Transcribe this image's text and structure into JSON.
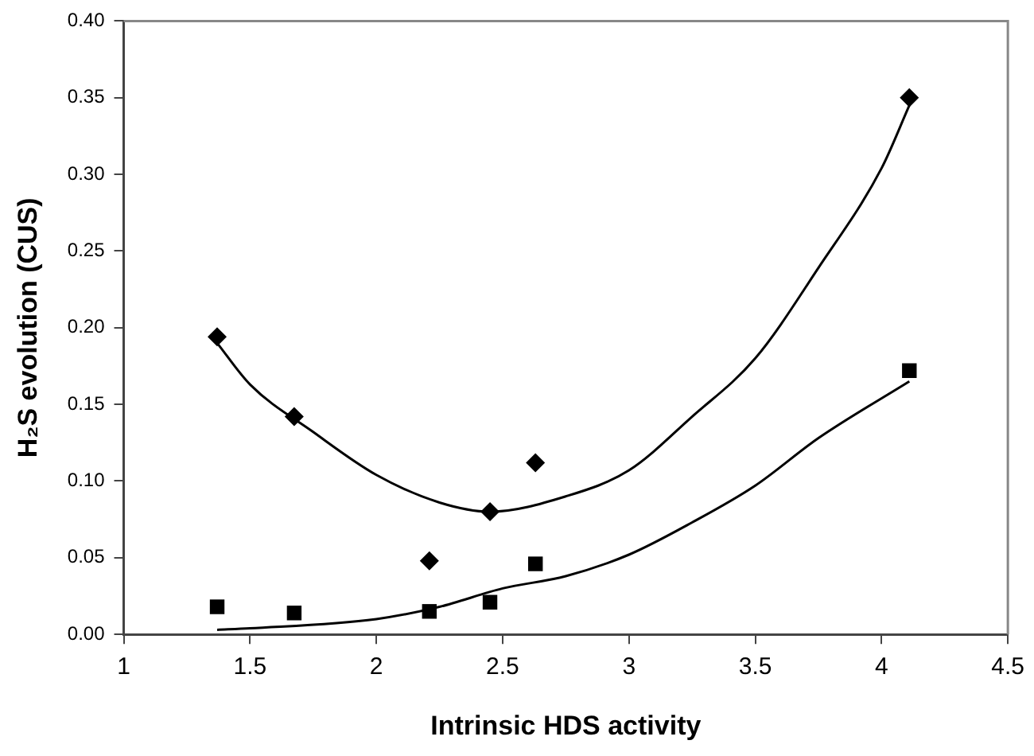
{
  "chart_data": {
    "type": "scatter",
    "xlabel": "Intrinsic HDS activity",
    "ylabel": "H₂S evolution (CUS)",
    "xlim": [
      1,
      4.5
    ],
    "xticks": [
      1,
      1.5,
      2,
      2.5,
      3,
      3.5,
      4,
      4.5
    ],
    "ylim": [
      0,
      0.4
    ],
    "yticks": [
      {
        "value": 0,
        "label": "0.00"
      },
      {
        "value": 0.05,
        "label": "0.05"
      },
      {
        "value": 0.1,
        "label": "0.10"
      },
      {
        "value": 0.15,
        "label": "0.15"
      },
      {
        "value": 0.2,
        "label": "0.20"
      },
      {
        "value": 0.25,
        "label": "0.25"
      },
      {
        "value": 0.3,
        "label": "0.30"
      },
      {
        "value": 0.35,
        "label": "0.35"
      },
      {
        "value": 0.4,
        "label": "0.40"
      }
    ],
    "grid": false,
    "legend": false,
    "series": [
      {
        "marker": "diamond",
        "color": "#000000",
        "x": [
          1.37,
          1.675,
          2.21,
          2.45,
          2.63,
          4.11
        ],
        "values": [
          0.194,
          0.142,
          0.048,
          0.08,
          0.112,
          0.35
        ]
      },
      {
        "marker": "square",
        "color": "#000000",
        "x": [
          1.37,
          1.675,
          2.21,
          2.45,
          2.63,
          4.11
        ],
        "values": [
          0.018,
          0.014,
          0.015,
          0.021,
          0.046,
          0.172
        ]
      },
      {
        "type": "line",
        "marker": "none",
        "color": "#000000",
        "x": [
          1.37,
          1.5,
          1.75,
          2.0,
          2.25,
          2.45,
          2.75,
          3.0,
          3.25,
          3.5,
          3.75,
          4.0,
          4.11
        ],
        "values": [
          0.19,
          0.163,
          0.132,
          0.104,
          0.086,
          0.08,
          0.09,
          0.107,
          0.142,
          0.18,
          0.239,
          0.304,
          0.345
        ]
      },
      {
        "type": "line",
        "marker": "none",
        "color": "#000000",
        "x": [
          1.37,
          1.5,
          2.0,
          2.25,
          2.5,
          2.75,
          3.0,
          3.25,
          3.5,
          3.75,
          4.11
        ],
        "values": [
          0.003,
          0.004,
          0.01,
          0.018,
          0.03,
          0.038,
          0.052,
          0.073,
          0.097,
          0.128,
          0.165
        ]
      }
    ]
  }
}
